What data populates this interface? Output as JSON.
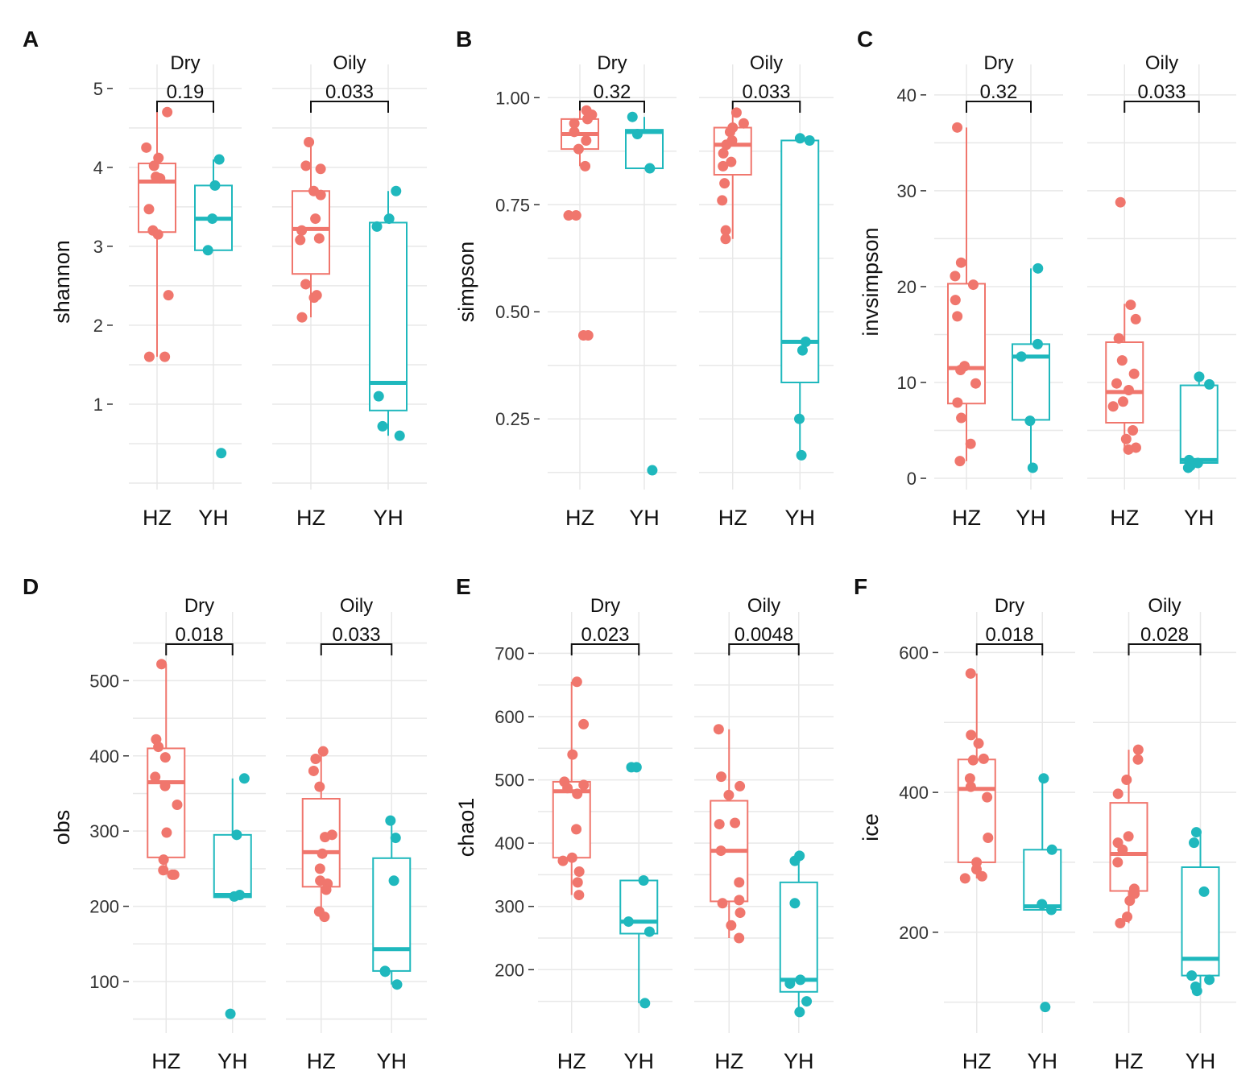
{
  "colors": {
    "HZ": "#F0766D",
    "YH": "#1FB8BD",
    "grid": "#E8E8E8",
    "axis": "#333333",
    "bracket": "#111111"
  },
  "chart_data": [
    {
      "panel_label": "A",
      "type": "box",
      "ylabel": "shannon",
      "ylim": [
        0.0,
        5.1
      ],
      "yticks": [
        1,
        2,
        3,
        4,
        5
      ],
      "ytick_labels": [
        "1",
        "2",
        "3",
        "4",
        "5"
      ],
      "facets": [
        {
          "title": "Dry",
          "pvalue": "0.19",
          "groups": [
            {
              "name": "HZ",
              "box": {
                "min": 1.6,
                "q1": 3.18,
                "median": 3.82,
                "q3": 4.05,
                "max": 4.7
              },
              "points": [
                4.7,
                4.25,
                4.12,
                4.02,
                3.88,
                3.86,
                3.47,
                3.2,
                3.15,
                2.38,
                1.6,
                1.6
              ]
            },
            {
              "name": "YH",
              "box": {
                "min": 2.95,
                "q1": 2.95,
                "median": 3.35,
                "q3": 3.77,
                "max": 4.1
              },
              "points": [
                4.1,
                3.77,
                3.35,
                2.95,
                0.38
              ]
            }
          ]
        },
        {
          "title": "Oily",
          "pvalue": "0.033",
          "groups": [
            {
              "name": "HZ",
              "box": {
                "min": 2.1,
                "q1": 2.65,
                "median": 3.22,
                "q3": 3.7,
                "max": 4.32
              },
              "points": [
                4.32,
                4.02,
                3.98,
                3.7,
                3.65,
                3.35,
                3.2,
                3.1,
                3.08,
                2.52,
                2.38,
                2.35,
                2.1
              ]
            },
            {
              "name": "YH",
              "box": {
                "min": 0.6,
                "q1": 0.92,
                "median": 1.27,
                "q3": 3.3,
                "max": 3.7
              },
              "points": [
                3.7,
                3.35,
                3.25,
                1.1,
                0.72,
                0.6
              ]
            }
          ]
        }
      ]
    },
    {
      "panel_label": "B",
      "type": "box",
      "ylabel": "simpson",
      "ylim": [
        0.1,
        1.04
      ],
      "yticks": [
        0.25,
        0.5,
        0.75,
        1.0
      ],
      "ytick_labels": [
        "0.25",
        "0.50",
        "0.75",
        "1.00"
      ],
      "facets": [
        {
          "title": "Dry",
          "pvalue": "0.32",
          "groups": [
            {
              "name": "HZ",
              "box": {
                "min": 0.84,
                "q1": 0.88,
                "median": 0.915,
                "q3": 0.95,
                "max": 0.97
              },
              "points": [
                0.97,
                0.96,
                0.95,
                0.94,
                0.92,
                0.9,
                0.88,
                0.84,
                0.725,
                0.725,
                0.445,
                0.445
              ]
            },
            {
              "name": "YH",
              "box": {
                "min": 0.835,
                "q1": 0.835,
                "median": 0.92,
                "q3": 0.925,
                "max": 0.955
              },
              "points": [
                0.955,
                0.915,
                0.835,
                0.13
              ]
            }
          ]
        },
        {
          "title": "Oily",
          "pvalue": "0.033",
          "groups": [
            {
              "name": "HZ",
              "box": {
                "min": 0.67,
                "q1": 0.82,
                "median": 0.89,
                "q3": 0.93,
                "max": 0.965
              },
              "points": [
                0.965,
                0.94,
                0.93,
                0.92,
                0.9,
                0.89,
                0.87,
                0.85,
                0.84,
                0.8,
                0.76,
                0.69,
                0.67
              ]
            },
            {
              "name": "YH",
              "box": {
                "min": 0.165,
                "q1": 0.335,
                "median": 0.43,
                "q3": 0.9,
                "max": 0.9
              },
              "points": [
                0.905,
                0.9,
                0.43,
                0.41,
                0.25,
                0.165
              ]
            }
          ]
        }
      ]
    },
    {
      "panel_label": "C",
      "type": "box",
      "ylabel": "invsimpson",
      "ylim": [
        -0.5,
        41.5
      ],
      "yticks": [
        0,
        10,
        20,
        30,
        40
      ],
      "ytick_labels": [
        "0",
        "10",
        "20",
        "30",
        "40"
      ],
      "facets": [
        {
          "title": "Dry",
          "pvalue": "0.32",
          "groups": [
            {
              "name": "HZ",
              "box": {
                "min": 1.8,
                "q1": 7.8,
                "median": 11.5,
                "q3": 20.3,
                "max": 36.6
              },
              "points": [
                36.6,
                22.5,
                21.1,
                20.2,
                18.6,
                16.9,
                11.7,
                11.3,
                9.9,
                7.9,
                6.3,
                3.6,
                1.8
              ]
            },
            {
              "name": "YH",
              "box": {
                "min": 1.1,
                "q1": 6.1,
                "median": 12.7,
                "q3": 14.0,
                "max": 21.9
              },
              "points": [
                21.9,
                14.0,
                12.7,
                6.0,
                1.1
              ]
            }
          ]
        },
        {
          "title": "Oily",
          "pvalue": "0.033",
          "groups": [
            {
              "name": "HZ",
              "box": {
                "min": 3.0,
                "q1": 5.8,
                "median": 9.0,
                "q3": 14.2,
                "max": 18.2
              },
              "points": [
                28.8,
                18.1,
                16.6,
                14.6,
                12.3,
                10.9,
                9.9,
                9.2,
                8.0,
                7.5,
                5.0,
                4.1,
                3.2,
                3.0
              ]
            },
            {
              "name": "YH",
              "box": {
                "min": 1.2,
                "q1": 1.6,
                "median": 1.9,
                "q3": 9.7,
                "max": 10.6
              },
              "points": [
                10.6,
                9.8,
                1.9,
                1.6,
                1.3,
                1.1
              ]
            }
          ]
        }
      ]
    },
    {
      "panel_label": "D",
      "type": "box",
      "ylabel": "obs",
      "ylim": [
        40,
        570
      ],
      "yticks": [
        100,
        200,
        300,
        400,
        500
      ],
      "ytick_labels": [
        "100",
        "200",
        "300",
        "400",
        "500"
      ],
      "facets": [
        {
          "title": "Dry",
          "pvalue": "0.018",
          "groups": [
            {
              "name": "HZ",
              "box": {
                "min": 242,
                "q1": 265,
                "median": 365,
                "q3": 410,
                "max": 522
              },
              "points": [
                522,
                422,
                412,
                398,
                372,
                360,
                335,
                298,
                262,
                248,
                242,
                242
              ]
            },
            {
              "name": "YH",
              "box": {
                "min": 212,
                "q1": 212,
                "median": 215,
                "q3": 295,
                "max": 370
              },
              "points": [
                370,
                295,
                215,
                213,
                57
              ]
            }
          ]
        },
        {
          "title": "Oily",
          "pvalue": "0.033",
          "groups": [
            {
              "name": "HZ",
              "box": {
                "min": 186,
                "q1": 226,
                "median": 272,
                "q3": 343,
                "max": 406
              },
              "points": [
                406,
                396,
                380,
                359,
                295,
                292,
                270,
                250,
                234,
                230,
                222,
                193,
                186
              ]
            },
            {
              "name": "YH",
              "box": {
                "min": 96,
                "q1": 114,
                "median": 143,
                "q3": 264,
                "max": 314
              },
              "points": [
                314,
                291,
                234,
                114,
                113,
                96
              ]
            }
          ]
        }
      ]
    },
    {
      "panel_label": "E",
      "type": "box",
      "ylabel": "chao1",
      "ylim": [
        110,
        740
      ],
      "yticks": [
        200,
        300,
        400,
        500,
        600,
        700
      ],
      "ytick_labels": [
        "200",
        "300",
        "400",
        "500",
        "600",
        "700"
      ],
      "facets": [
        {
          "title": "Dry",
          "pvalue": "0.023",
          "groups": [
            {
              "name": "HZ",
              "box": {
                "min": 318,
                "q1": 377,
                "median": 482,
                "q3": 497,
                "max": 655
              },
              "points": [
                655,
                588,
                540,
                497,
                492,
                487,
                478,
                422,
                377,
                372,
                355,
                338,
                318
              ]
            },
            {
              "name": "YH",
              "box": {
                "min": 147,
                "q1": 257,
                "median": 276,
                "q3": 341,
                "max": 341
              },
              "points": [
                520,
                520,
                341,
                276,
                260,
                147
              ]
            }
          ]
        },
        {
          "title": "Oily",
          "pvalue": "0.0048",
          "groups": [
            {
              "name": "HZ",
              "box": {
                "min": 250,
                "q1": 308,
                "median": 388,
                "q3": 467,
                "max": 580
              },
              "points": [
                580,
                505,
                490,
                476,
                432,
                430,
                388,
                338,
                310,
                305,
                290,
                270,
                250
              ]
            },
            {
              "name": "YH",
              "box": {
                "min": 133,
                "q1": 165,
                "median": 184,
                "q3": 338,
                "max": 380
              },
              "points": [
                380,
                372,
                305,
                184,
                178,
                150,
                133
              ]
            }
          ]
        }
      ]
    },
    {
      "panel_label": "F",
      "type": "box",
      "ylabel": "ice",
      "ylim": [
        65,
        635
      ],
      "yticks": [
        200,
        400,
        600
      ],
      "ytick_labels": [
        "200",
        "400",
        "600"
      ],
      "facets": [
        {
          "title": "Dry",
          "pvalue": "0.018",
          "groups": [
            {
              "name": "HZ",
              "box": {
                "min": 277,
                "q1": 300,
                "median": 405,
                "q3": 447,
                "max": 570
              },
              "points": [
                570,
                482,
                470,
                448,
                446,
                420,
                408,
                393,
                335,
                300,
                290,
                280,
                277
              ]
            },
            {
              "name": "YH",
              "box": {
                "min": 232,
                "q1": 232,
                "median": 237,
                "q3": 318,
                "max": 420
              },
              "points": [
                420,
                318,
                240,
                232,
                93
              ]
            }
          ]
        },
        {
          "title": "Oily",
          "pvalue": "0.028",
          "groups": [
            {
              "name": "HZ",
              "box": {
                "min": 213,
                "q1": 259,
                "median": 312,
                "q3": 385,
                "max": 461
              },
              "points": [
                461,
                447,
                418,
                398,
                337,
                328,
                318,
                300,
                262,
                255,
                245,
                222,
                213
              ]
            },
            {
              "name": "YH",
              "box": {
                "min": 120,
                "q1": 138,
                "median": 162,
                "q3": 293,
                "max": 343
              },
              "points": [
                343,
                328,
                258,
                138,
                132,
                122,
                116
              ]
            }
          ]
        }
      ]
    }
  ]
}
